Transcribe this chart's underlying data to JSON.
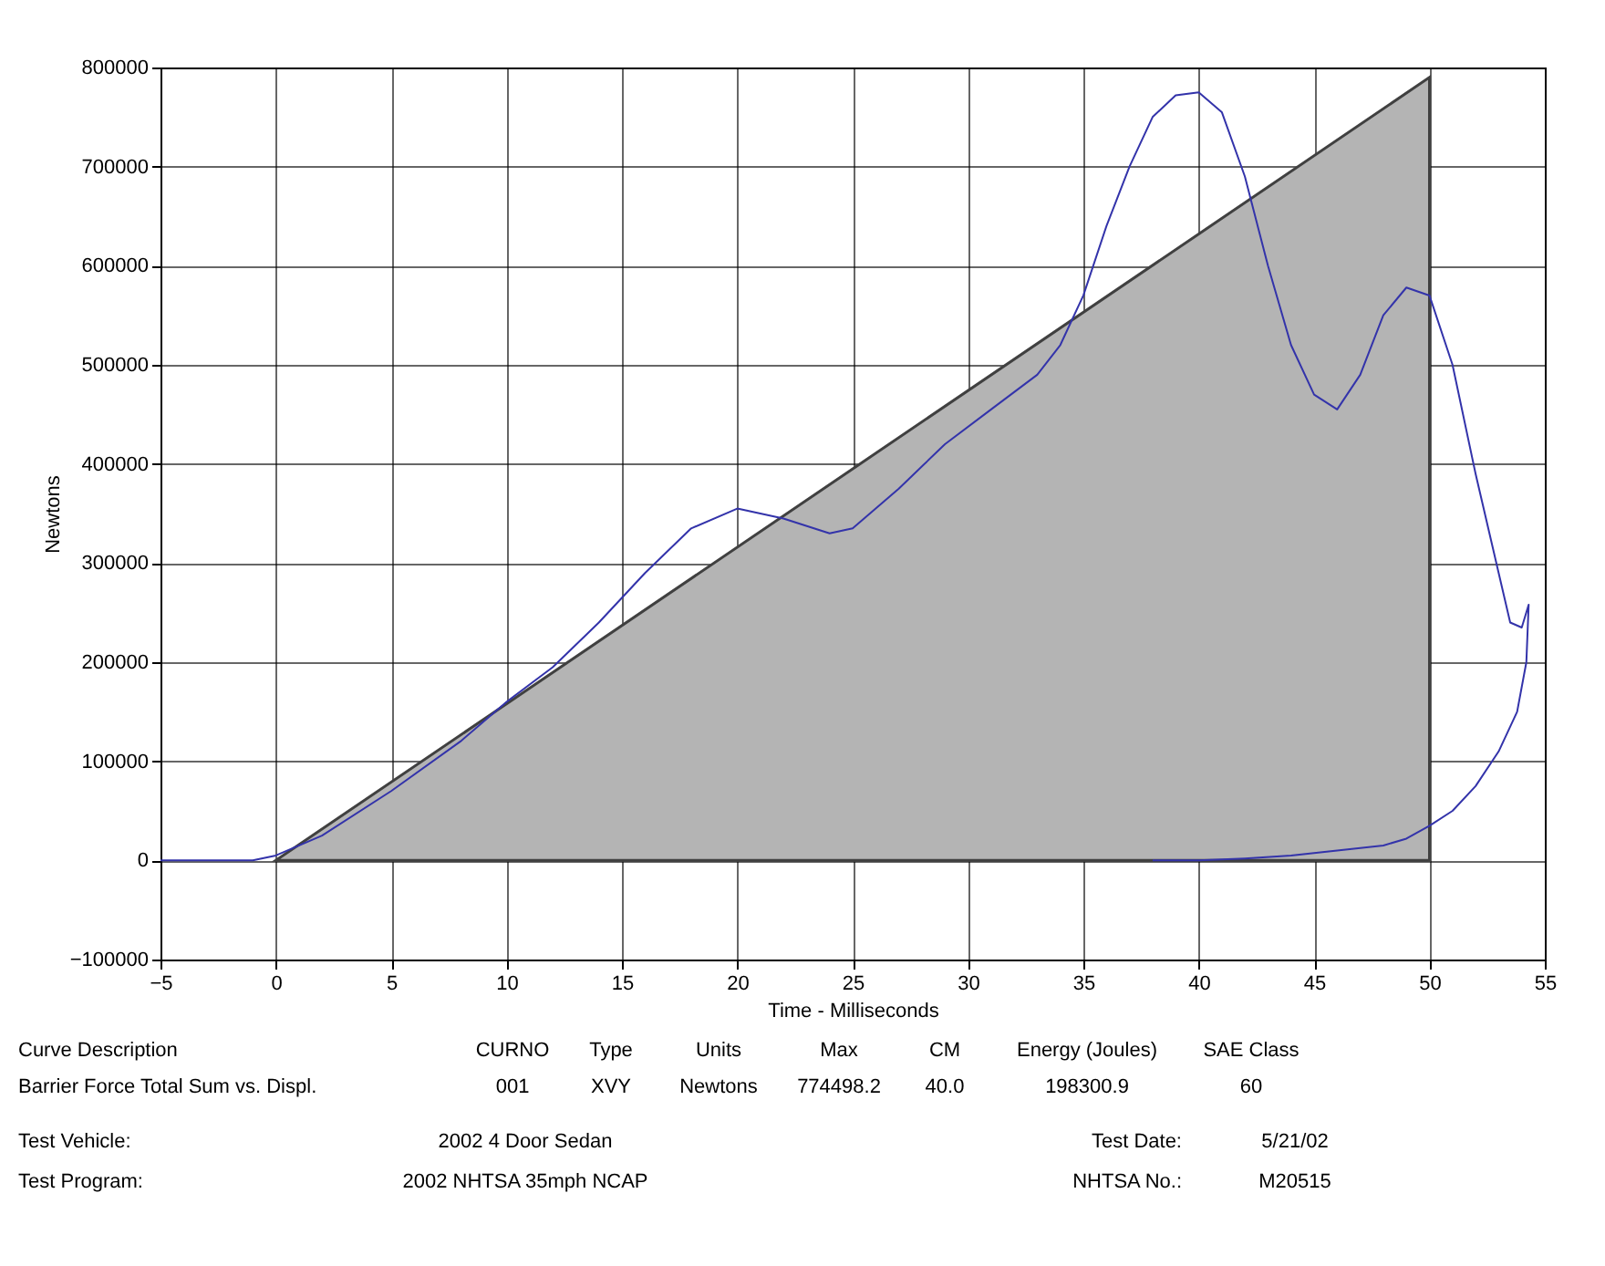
{
  "chart_data": {
    "type": "line",
    "xlabel": "Time - Milliseconds",
    "ylabel": "Newtons",
    "xlim": [
      -5,
      55
    ],
    "xticks": [
      -5,
      0,
      5,
      10,
      15,
      20,
      25,
      30,
      35,
      40,
      45,
      50,
      55
    ],
    "ylim": [
      -100000,
      800000
    ],
    "yticks": [
      -100000,
      0,
      100000,
      200000,
      300000,
      400000,
      500000,
      600000,
      700000,
      800000
    ],
    "grid": true,
    "series": [
      {
        "type": "area",
        "color": "#b4b4b4",
        "x": [
          0,
          50
        ],
        "values": [
          0,
          790000
        ]
      },
      {
        "color": "#3333aa",
        "x": [
          -5,
          -1,
          0,
          2,
          5,
          8,
          10,
          12,
          14,
          16,
          18,
          20,
          22,
          24,
          25,
          27,
          29,
          31,
          33,
          34,
          35,
          36,
          37,
          38,
          39,
          40,
          41,
          42,
          43,
          44,
          45,
          46,
          47,
          48,
          49,
          50,
          51,
          52,
          53,
          53.5,
          54,
          54.3,
          54.2,
          53.8,
          53,
          52,
          51,
          50,
          49,
          48,
          46,
          44,
          42,
          40,
          38
        ],
        "values": [
          0,
          0,
          5000,
          25000,
          70000,
          120000,
          160000,
          195000,
          240000,
          290000,
          335000,
          355000,
          345000,
          330000,
          335000,
          375000,
          420000,
          455000,
          490000,
          520000,
          570000,
          640000,
          700000,
          750000,
          772000,
          775000,
          755000,
          690000,
          600000,
          520000,
          470000,
          455000,
          490000,
          550000,
          578000,
          570000,
          500000,
          390000,
          290000,
          240000,
          235000,
          258000,
          200000,
          150000,
          110000,
          75000,
          50000,
          35000,
          22000,
          15000,
          10000,
          5000,
          2000,
          0,
          0
        ]
      }
    ],
    "annotations": [
      "Curve Description",
      "CURNO",
      "Type",
      "Units",
      "Max",
      "CM",
      "Energy (Joules)",
      "SAE Class",
      "Barrier Force Total Sum vs. Displ.",
      "001",
      "XVY",
      "Newtons",
      "774498.2",
      "40.0",
      "198300.9",
      "60",
      "Test Vehicle:",
      "2002 4 Door Sedan",
      "Test Date:",
      "5/21/02",
      "Test Program:",
      "2002 NHTSA 35mph NCAP",
      "NHTSA No.:",
      "M20515"
    ]
  }
}
